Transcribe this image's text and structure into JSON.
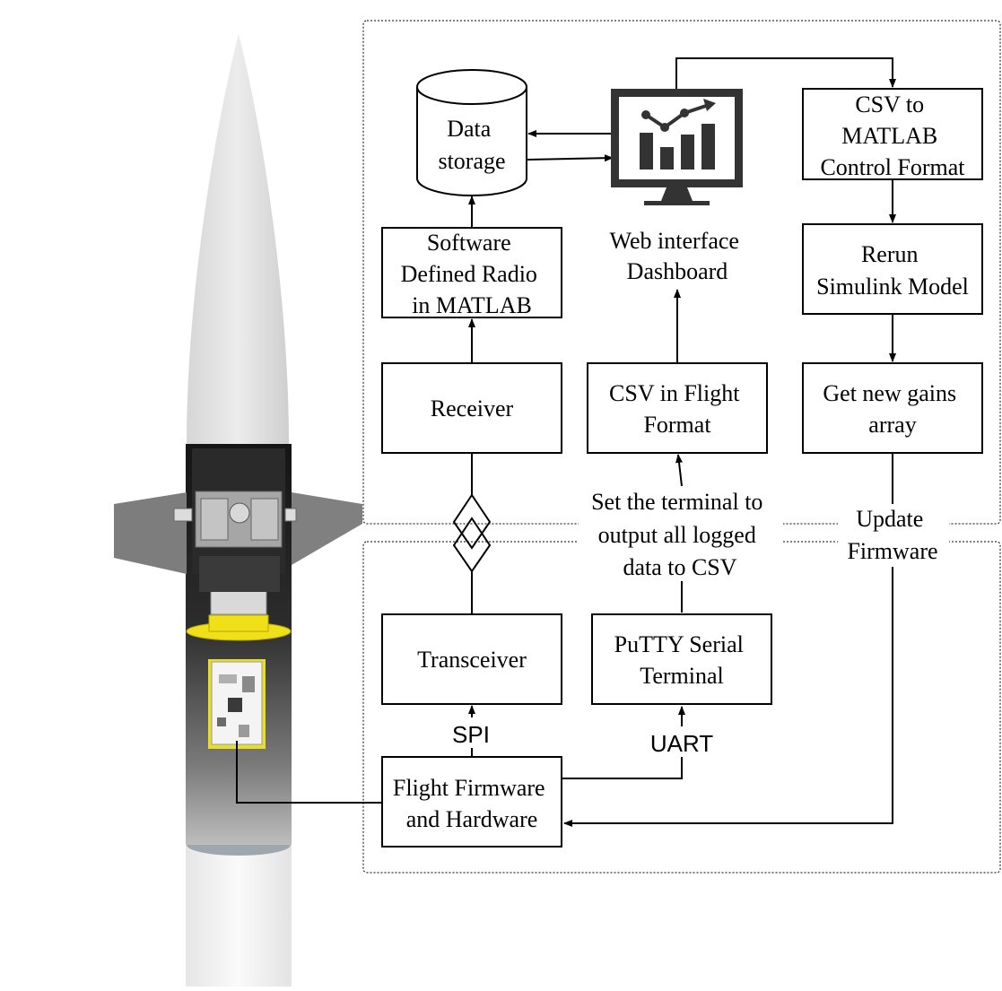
{
  "colors": {
    "line": "#000000",
    "box_fill": "#ffffff",
    "nose_cone": "#e2e2e2",
    "fin": "#7d7d7d",
    "body_tube": "#1c1c1c",
    "mount_yellow": "#f0e019",
    "pcb": "#f4f4f4",
    "lower_tube": "#f2f2f2"
  },
  "nodes": {
    "data_storage": [
      "Data",
      "storage"
    ],
    "dashboard_label": [
      "Web interface",
      "Dashboard"
    ],
    "csv_matlab": [
      "CSV to",
      "MATLAB",
      "Control Format"
    ],
    "sdr": [
      "Software",
      "Defined Radio",
      "in MATLAB"
    ],
    "rerun": [
      "Rerun",
      "Simulink Model"
    ],
    "receiver": [
      "Receiver"
    ],
    "csv_flight": [
      "CSV in Flight",
      "Format"
    ],
    "gains": [
      "Get new gains",
      "array"
    ],
    "transceiver": [
      "Transceiver"
    ],
    "putty": [
      "PuTTY Serial",
      "Terminal"
    ],
    "firmware": [
      "Flight Firmware",
      "and Hardware"
    ]
  },
  "edge_labels": {
    "terminal_note": [
      "Set the terminal to",
      "output all logged",
      "data to CSV"
    ],
    "update_firmware": [
      "Update",
      "Firmware"
    ],
    "spi": "SPI",
    "uart": "UART"
  },
  "icons": {
    "dashboard": "monitor-analytics-icon",
    "storage": "database-cylinder-icon"
  }
}
